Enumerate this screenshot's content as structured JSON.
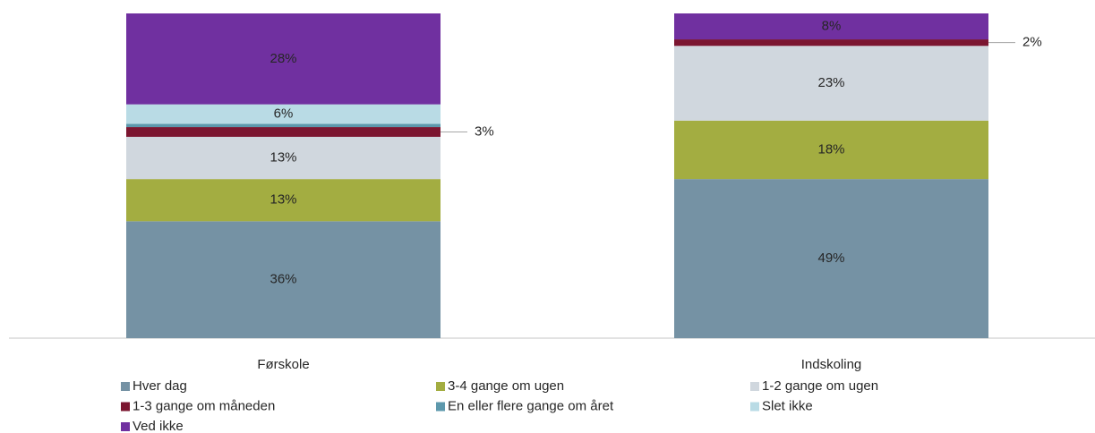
{
  "chart_data": {
    "type": "stacked-bar",
    "categories": [
      "Førskole",
      "Indskoling"
    ],
    "ylim": [
      0,
      100
    ],
    "series": [
      {
        "name": "Hver dag",
        "color": "#7592a4",
        "values": [
          36,
          49
        ],
        "value_labels": [
          "36%",
          "49%"
        ]
      },
      {
        "name": "3-4 gange om ugen",
        "color": "#a3ad41",
        "values": [
          13,
          18
        ],
        "value_labels": [
          "13%",
          "18%"
        ]
      },
      {
        "name": "1-2 gange om ugen",
        "color": "#d0d7de",
        "values": [
          13,
          23
        ],
        "value_labels": [
          "13%",
          "23%"
        ]
      },
      {
        "name": "1-3 gange om måneden",
        "color": "#7b1530",
        "values": [
          3,
          2
        ],
        "value_labels": [
          "3%",
          "2%"
        ]
      },
      {
        "name": "En eller flere gange om året",
        "color": "#5d98ac",
        "values": [
          1,
          0
        ],
        "value_labels": [
          null,
          null
        ]
      },
      {
        "name": "Slet ikke",
        "color": "#b9dbe5",
        "values": [
          6,
          0
        ],
        "value_labels": [
          "6%",
          null
        ]
      },
      {
        "name": "Ved ikke",
        "color": "#7030a0",
        "values": [
          28,
          8
        ],
        "value_labels": [
          "28%",
          "8%"
        ]
      }
    ],
    "legend": "bottom"
  }
}
